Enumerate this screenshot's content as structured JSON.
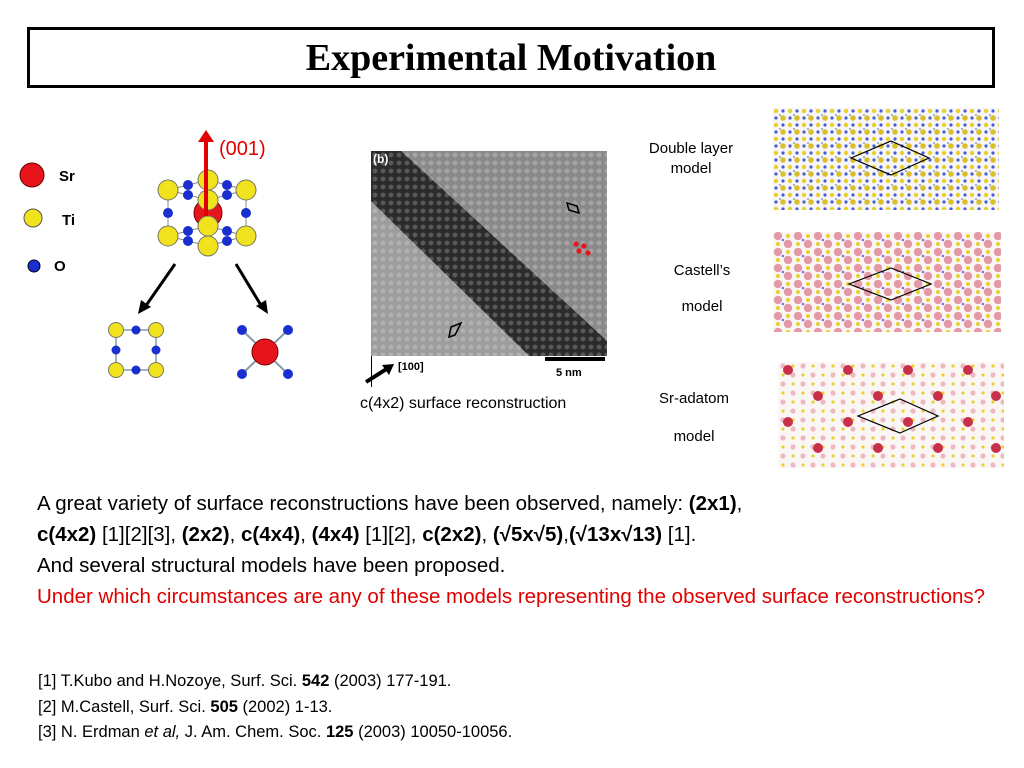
{
  "title": "Experimental Motivation",
  "legend": {
    "sr": "Sr",
    "ti": "Ti",
    "o": "O"
  },
  "axis_label": "(001)",
  "stm": {
    "panel_label": "(b)",
    "direction_label": "[100]",
    "scale_label": "5 nm",
    "caption": "c(4x2) surface reconstruction"
  },
  "models": {
    "double_layer": [
      "Double layer",
      "model"
    ],
    "castell": [
      "Castell’s",
      "model"
    ],
    "sr_adatom": [
      "Sr-adatom",
      "model"
    ]
  },
  "paragraph": {
    "l1_text": "A great variety of surface reconstructions have been observed, namely: ",
    "l1_b1": "(2x1)",
    "l1_end": ",",
    "l2_b1": "c(4x2)",
    "l2_t1": " [1][2][3], ",
    "l2_b2": "(2x2)",
    "l2_t2": ", ",
    "l2_b3": "c(4x4)",
    "l2_t3": ", ",
    "l2_b4": "(4x4)",
    "l2_t4": " [1][2], ",
    "l2_b5": "c(2x2)",
    "l2_t5": ", ",
    "l2_b6": "(√5x√5)",
    "l2_t6": ",",
    "l2_b7": "(√13x√13)",
    "l2_t7": " [1].",
    "l3": "And several structural models have been proposed.",
    "question": "Under which circumstances are any of these models representing the observed surface reconstructions?"
  },
  "references": [
    {
      "pre": "[1] T.Kubo and H.Nozoye, Surf. Sci. ",
      "italic": "",
      "mid": "",
      "bold": "542",
      "post": " (2003) 177-191."
    },
    {
      "pre": "[2] M.Castell, Surf. Sci. ",
      "italic": "",
      "mid": "",
      "bold": "505",
      "post": " (2002) 1-13."
    },
    {
      "pre": "[3] N. Erdman ",
      "italic": "et al,",
      "mid": " J. Am. Chem. Soc. ",
      "bold": "125",
      "post": " (2003) 10050-10056."
    }
  ],
  "colors": {
    "sr": "#e8141c",
    "ti": "#f0e21c",
    "o": "#1a2fd0",
    "question": "#e00000"
  }
}
